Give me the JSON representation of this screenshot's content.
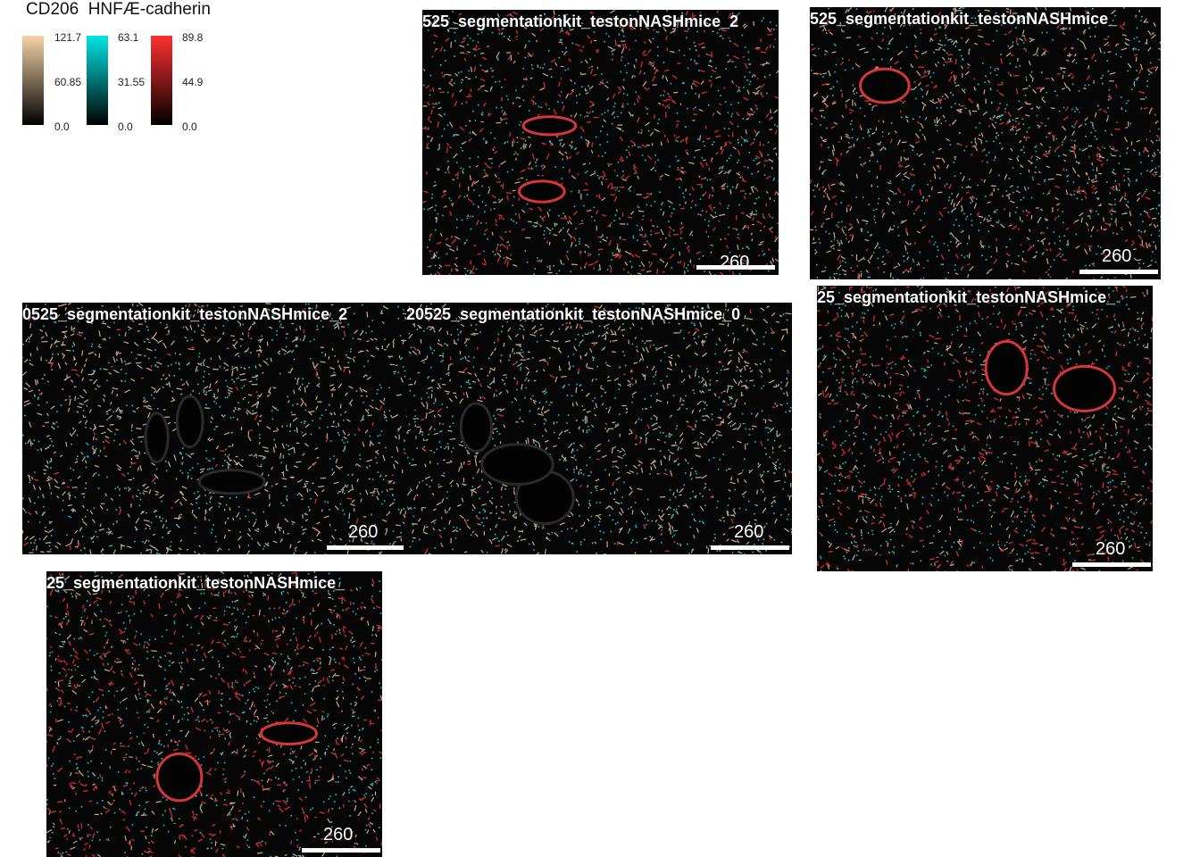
{
  "legend": {
    "header": "CD206  HNFÆ-cadherin",
    "colorbars": [
      {
        "channel_color": "#f5d3a8",
        "max": "121.7",
        "mid": "60.85",
        "min": "0.0"
      },
      {
        "channel_color": "#00e5e5",
        "max": "63.1",
        "mid": "31.55",
        "min": "0.0"
      },
      {
        "channel_color": "#ff3030",
        "max": "89.8",
        "mid": "44.9",
        "min": "0.0"
      }
    ]
  },
  "panels": [
    {
      "title": "525_segmentationkit_testonNASHmice_2",
      "scale_label": "260"
    },
    {
      "title": "525_segmentationkit_testonNASHmice_",
      "scale_label": "260"
    },
    {
      "title": "0525_segmentationkit_testonNASHmice_2",
      "scale_label": "260"
    },
    {
      "title": "20525_segmentationkit_testonNASHmice_0",
      "scale_label": "260"
    },
    {
      "title": "25_segmentationkit_testonNASHmice_",
      "scale_label": "260"
    },
    {
      "title": "25_segmentationkit_testonNASHmice_",
      "scale_label": "260"
    }
  ]
}
